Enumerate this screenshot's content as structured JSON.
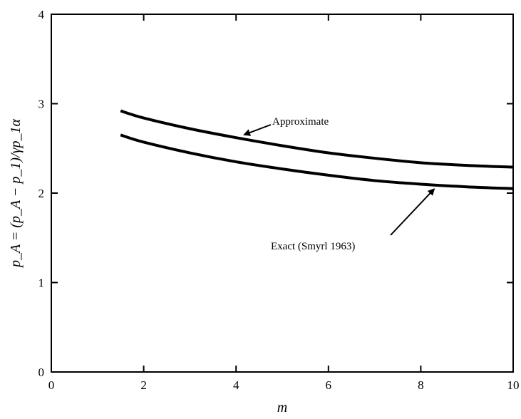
{
  "chart_data": {
    "type": "line",
    "title": "",
    "xlabel": "m",
    "ylabel": "p_A = (p_A − p_1)/γp_1α",
    "xlim": [
      0,
      10
    ],
    "ylim": [
      0,
      4
    ],
    "xticks": [
      0,
      2,
      4,
      6,
      8,
      10
    ],
    "yticks": [
      0,
      1,
      2,
      3,
      4
    ],
    "grid": false,
    "series": [
      {
        "name": "Approximate",
        "x": [
          1.5,
          2,
          3,
          4,
          5,
          6,
          7,
          8,
          9,
          10
        ],
        "y": [
          2.92,
          2.84,
          2.72,
          2.62,
          2.53,
          2.45,
          2.39,
          2.34,
          2.31,
          2.29
        ]
      },
      {
        "name": "Exact (Smyrl 1963)",
        "x": [
          1.5,
          2,
          3,
          4,
          5,
          6,
          7,
          8,
          9,
          10
        ],
        "y": [
          2.65,
          2.57,
          2.45,
          2.35,
          2.27,
          2.2,
          2.14,
          2.1,
          2.07,
          2.05
        ]
      }
    ],
    "annotations": [
      {
        "text": "Approximate",
        "series": "Approximate",
        "at_x": 4.15
      },
      {
        "text": "Exact (Smyrl 1963)",
        "series": "Exact (Smyrl 1963)",
        "at_x": 8.3
      }
    ]
  }
}
